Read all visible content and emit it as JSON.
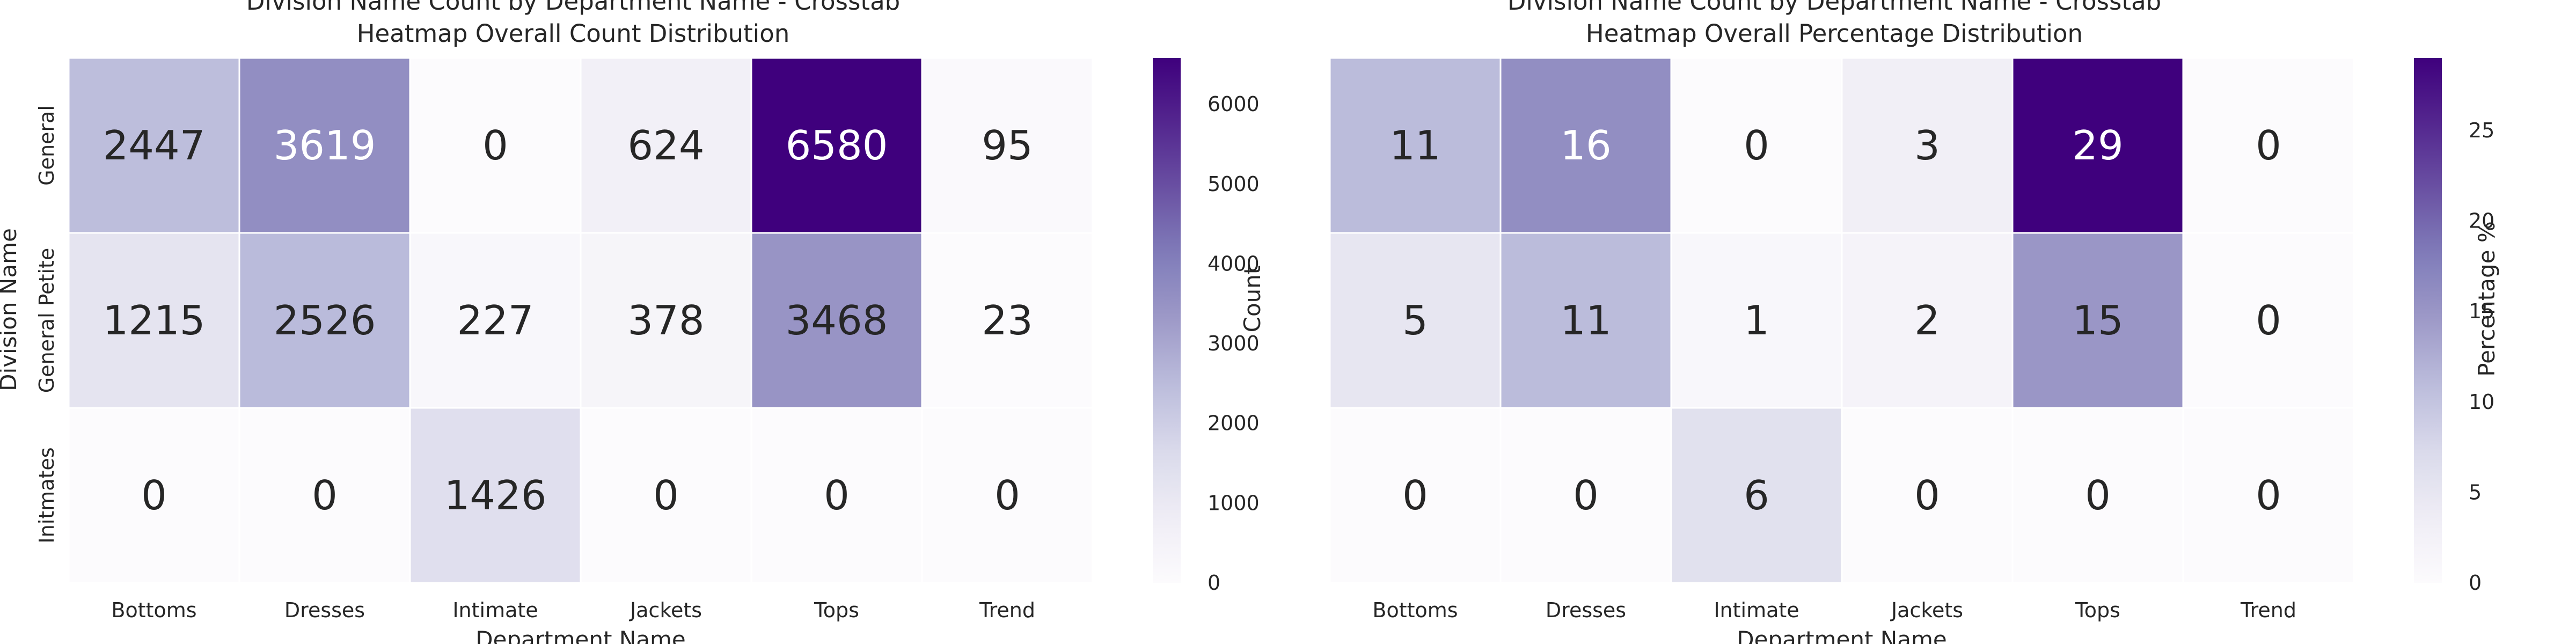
{
  "chart_data": [
    {
      "type": "heatmap",
      "title": "Division Name Count by Department Name - Crosstab",
      "subtitle": "Heatmap Overall Count Distribution",
      "xlabel": "Department Name",
      "ylabel": "Division Name",
      "x_categories": [
        "Bottoms",
        "Dresses",
        "Intimate",
        "Jackets",
        "Tops",
        "Trend"
      ],
      "y_categories": [
        "General",
        "General Petite",
        "Initmates"
      ],
      "values": [
        [
          2447,
          3619,
          0,
          624,
          6580,
          95
        ],
        [
          1215,
          2526,
          227,
          378,
          3468,
          23
        ],
        [
          0,
          0,
          1426,
          0,
          0,
          0
        ]
      ],
      "colorbar": {
        "label": "Count",
        "range": [
          0,
          6580
        ],
        "ticks": [
          "0",
          "1000",
          "2000",
          "3000",
          "4000",
          "5000",
          "6000"
        ],
        "colormap": "Purples"
      }
    },
    {
      "type": "heatmap",
      "title": "Division Name Count by Department Name - Crosstab",
      "subtitle": "Heatmap Overall Percentage Distribution",
      "xlabel": "Department Name",
      "ylabel": "",
      "x_categories": [
        "Bottoms",
        "Dresses",
        "Intimate",
        "Jackets",
        "Tops",
        "Trend"
      ],
      "y_categories": [],
      "values": [
        [
          11,
          16,
          0,
          3,
          29,
          0
        ],
        [
          5,
          11,
          1,
          2,
          15,
          0
        ],
        [
          0,
          0,
          6,
          0,
          0,
          0
        ]
      ],
      "colorbar": {
        "label": "Percentage %",
        "range": [
          0,
          29
        ],
        "ticks": [
          "0",
          "5",
          "10",
          "15",
          "20",
          "25"
        ],
        "colormap": "Purples"
      }
    }
  ]
}
